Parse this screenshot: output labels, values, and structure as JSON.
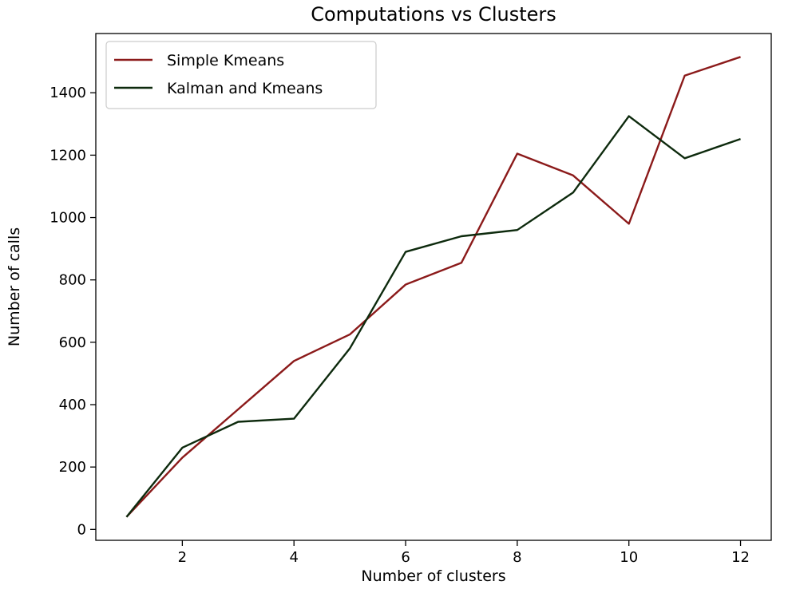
{
  "chart_data": {
    "type": "line",
    "title": "Computations vs Clusters",
    "xlabel": "Number of clusters",
    "ylabel": "Number of calls",
    "x": [
      1,
      2,
      3,
      4,
      5,
      6,
      7,
      8,
      9,
      10,
      11,
      12
    ],
    "series": [
      {
        "name": "Simple Kmeans",
        "color": "#8b1a1a",
        "values": [
          40,
          230,
          385,
          540,
          625,
          785,
          855,
          1205,
          1135,
          980,
          1455,
          1515
        ]
      },
      {
        "name": "Kalman and Kmeans",
        "color": "#0d2a0d",
        "values": [
          40,
          262,
          345,
          355,
          580,
          890,
          940,
          960,
          1080,
          1325,
          1190,
          1252
        ]
      }
    ],
    "xlim": [
      0.45,
      12.55
    ],
    "ylim": [
      -35,
      1590
    ],
    "xticks": [
      2,
      4,
      6,
      8,
      10,
      12
    ],
    "yticks": [
      0,
      200,
      400,
      600,
      800,
      1000,
      1200,
      1400
    ],
    "grid": false,
    "legend_position": "top-left"
  }
}
